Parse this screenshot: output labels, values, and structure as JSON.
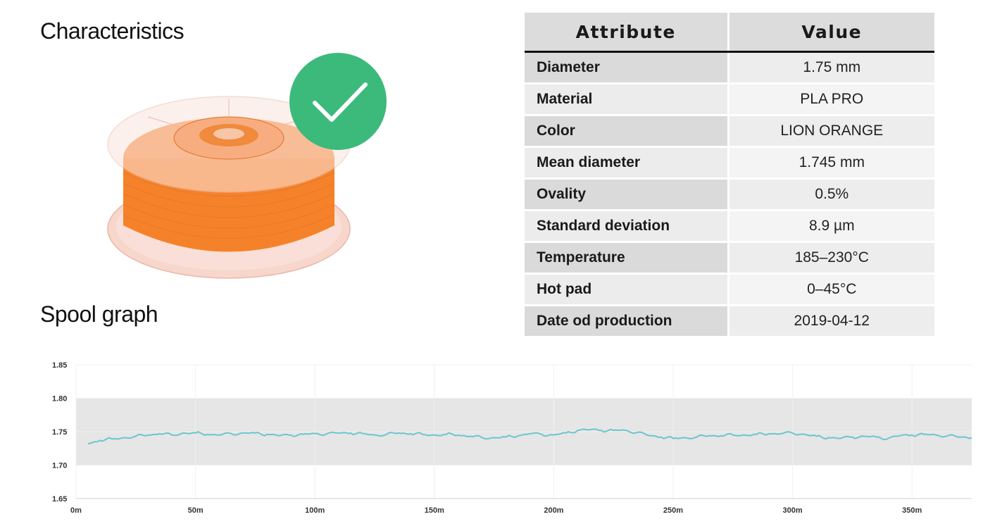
{
  "headings": {
    "characteristics": "Characteristics",
    "spool_graph": "Spool graph"
  },
  "product_image": {
    "subject": "orange filament spool",
    "filament_color": "#f5822a",
    "badge_icon": "checkmark-icon",
    "badge_color": "#3cba7c"
  },
  "table": {
    "headers": [
      "Attribute",
      "Value"
    ],
    "rows": [
      {
        "attribute": "Diameter",
        "value": "1.75 mm"
      },
      {
        "attribute": "Material",
        "value": "PLA PRO"
      },
      {
        "attribute": "Color",
        "value": "LION ORANGE"
      },
      {
        "attribute": "Mean diameter",
        "value": "1.745 mm"
      },
      {
        "attribute": "Ovality",
        "value": "0.5%"
      },
      {
        "attribute": "Standard deviation",
        "value": "8.9 µm"
      },
      {
        "attribute": "Temperature",
        "value": "185–230°C"
      },
      {
        "attribute": "Hot pad",
        "value": "0–45°C"
      },
      {
        "attribute": "Date od production",
        "value": "2019-04-12"
      }
    ]
  },
  "chart_data": {
    "type": "line",
    "title": "",
    "xlabel": "",
    "ylabel": "",
    "xlim": [
      0,
      375
    ],
    "ylim": [
      1.65,
      1.85
    ],
    "x_ticks": [
      "0m",
      "50m",
      "100m",
      "150m",
      "200m",
      "250m",
      "300m",
      "350m"
    ],
    "x_tick_values": [
      0,
      50,
      100,
      150,
      200,
      250,
      300,
      350
    ],
    "y_ticks": [
      "1.65",
      "1.70",
      "1.75",
      "1.80",
      "1.85"
    ],
    "y_tick_values": [
      1.65,
      1.7,
      1.75,
      1.8,
      1.85
    ],
    "tolerance_band": [
      1.7,
      1.8
    ],
    "grid": true,
    "line_color": "#6cc5cf",
    "band_color": "#e6e6e6",
    "x": [
      5,
      10,
      15,
      20,
      25,
      30,
      35,
      40,
      45,
      50,
      55,
      60,
      65,
      70,
      75,
      80,
      85,
      90,
      95,
      100,
      105,
      110,
      115,
      120,
      125,
      130,
      135,
      140,
      145,
      150,
      155,
      160,
      165,
      170,
      175,
      180,
      185,
      190,
      195,
      200,
      205,
      210,
      215,
      220,
      225,
      230,
      235,
      240,
      245,
      250,
      255,
      260,
      265,
      270,
      275,
      280,
      285,
      290,
      295,
      300,
      305,
      310,
      315,
      320,
      325,
      330,
      335,
      340,
      345,
      350,
      355,
      360,
      365,
      370,
      375
    ],
    "y": [
      1.732,
      1.737,
      1.739,
      1.741,
      1.743,
      1.745,
      1.747,
      1.745,
      1.748,
      1.748,
      1.746,
      1.745,
      1.747,
      1.748,
      1.748,
      1.746,
      1.744,
      1.745,
      1.746,
      1.747,
      1.747,
      1.748,
      1.748,
      1.747,
      1.745,
      1.746,
      1.748,
      1.747,
      1.746,
      1.745,
      1.746,
      1.745,
      1.743,
      1.741,
      1.741,
      1.742,
      1.744,
      1.747,
      1.746,
      1.745,
      1.748,
      1.752,
      1.753,
      1.752,
      1.752,
      1.752,
      1.749,
      1.744,
      1.742,
      1.74,
      1.741,
      1.742,
      1.744,
      1.744,
      1.745,
      1.745,
      1.746,
      1.747,
      1.747,
      1.748,
      1.746,
      1.743,
      1.741,
      1.74,
      1.742,
      1.743,
      1.742,
      1.74,
      1.744,
      1.745,
      1.746,
      1.745,
      1.744,
      1.742,
      1.741
    ]
  }
}
